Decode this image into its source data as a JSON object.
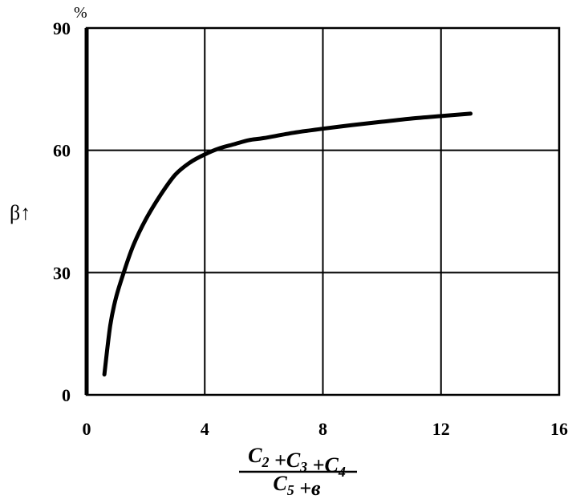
{
  "chart_data": {
    "type": "line",
    "title": "",
    "ylabel": "β↑",
    "y_unit": "%",
    "xlabel": {
      "numerator": [
        {
          "base": "C",
          "sub": "2"
        },
        {
          "op": " +"
        },
        {
          "base": "C",
          "sub": "3"
        },
        {
          "op": " +"
        },
        {
          "base": "C",
          "sub": "4"
        }
      ],
      "denominator": [
        {
          "base": "C",
          "sub": "5"
        },
        {
          "op": " +"
        },
        {
          "base": "в"
        }
      ]
    },
    "xlim": [
      0,
      16
    ],
    "ylim": [
      0,
      90
    ],
    "xticks": [
      0,
      4,
      8,
      12,
      16
    ],
    "yticks": [
      0,
      30,
      60,
      90
    ],
    "grid": true,
    "series": [
      {
        "color": "#000000",
        "x": [
          0.6,
          0.8,
          1.0,
          1.3,
          1.6,
          2.0,
          2.5,
          3.0,
          3.5,
          4.0,
          4.5,
          5.0,
          5.5,
          6.0,
          7.0,
          8.0,
          9.0,
          10.0,
          11.0,
          12.0,
          13.0
        ],
        "y": [
          5,
          17,
          24,
          31,
          37,
          43,
          49,
          54,
          57,
          59,
          60.5,
          61.5,
          62.5,
          63,
          64.3,
          65.3,
          66.2,
          67,
          67.8,
          68.4,
          69
        ]
      }
    ]
  }
}
